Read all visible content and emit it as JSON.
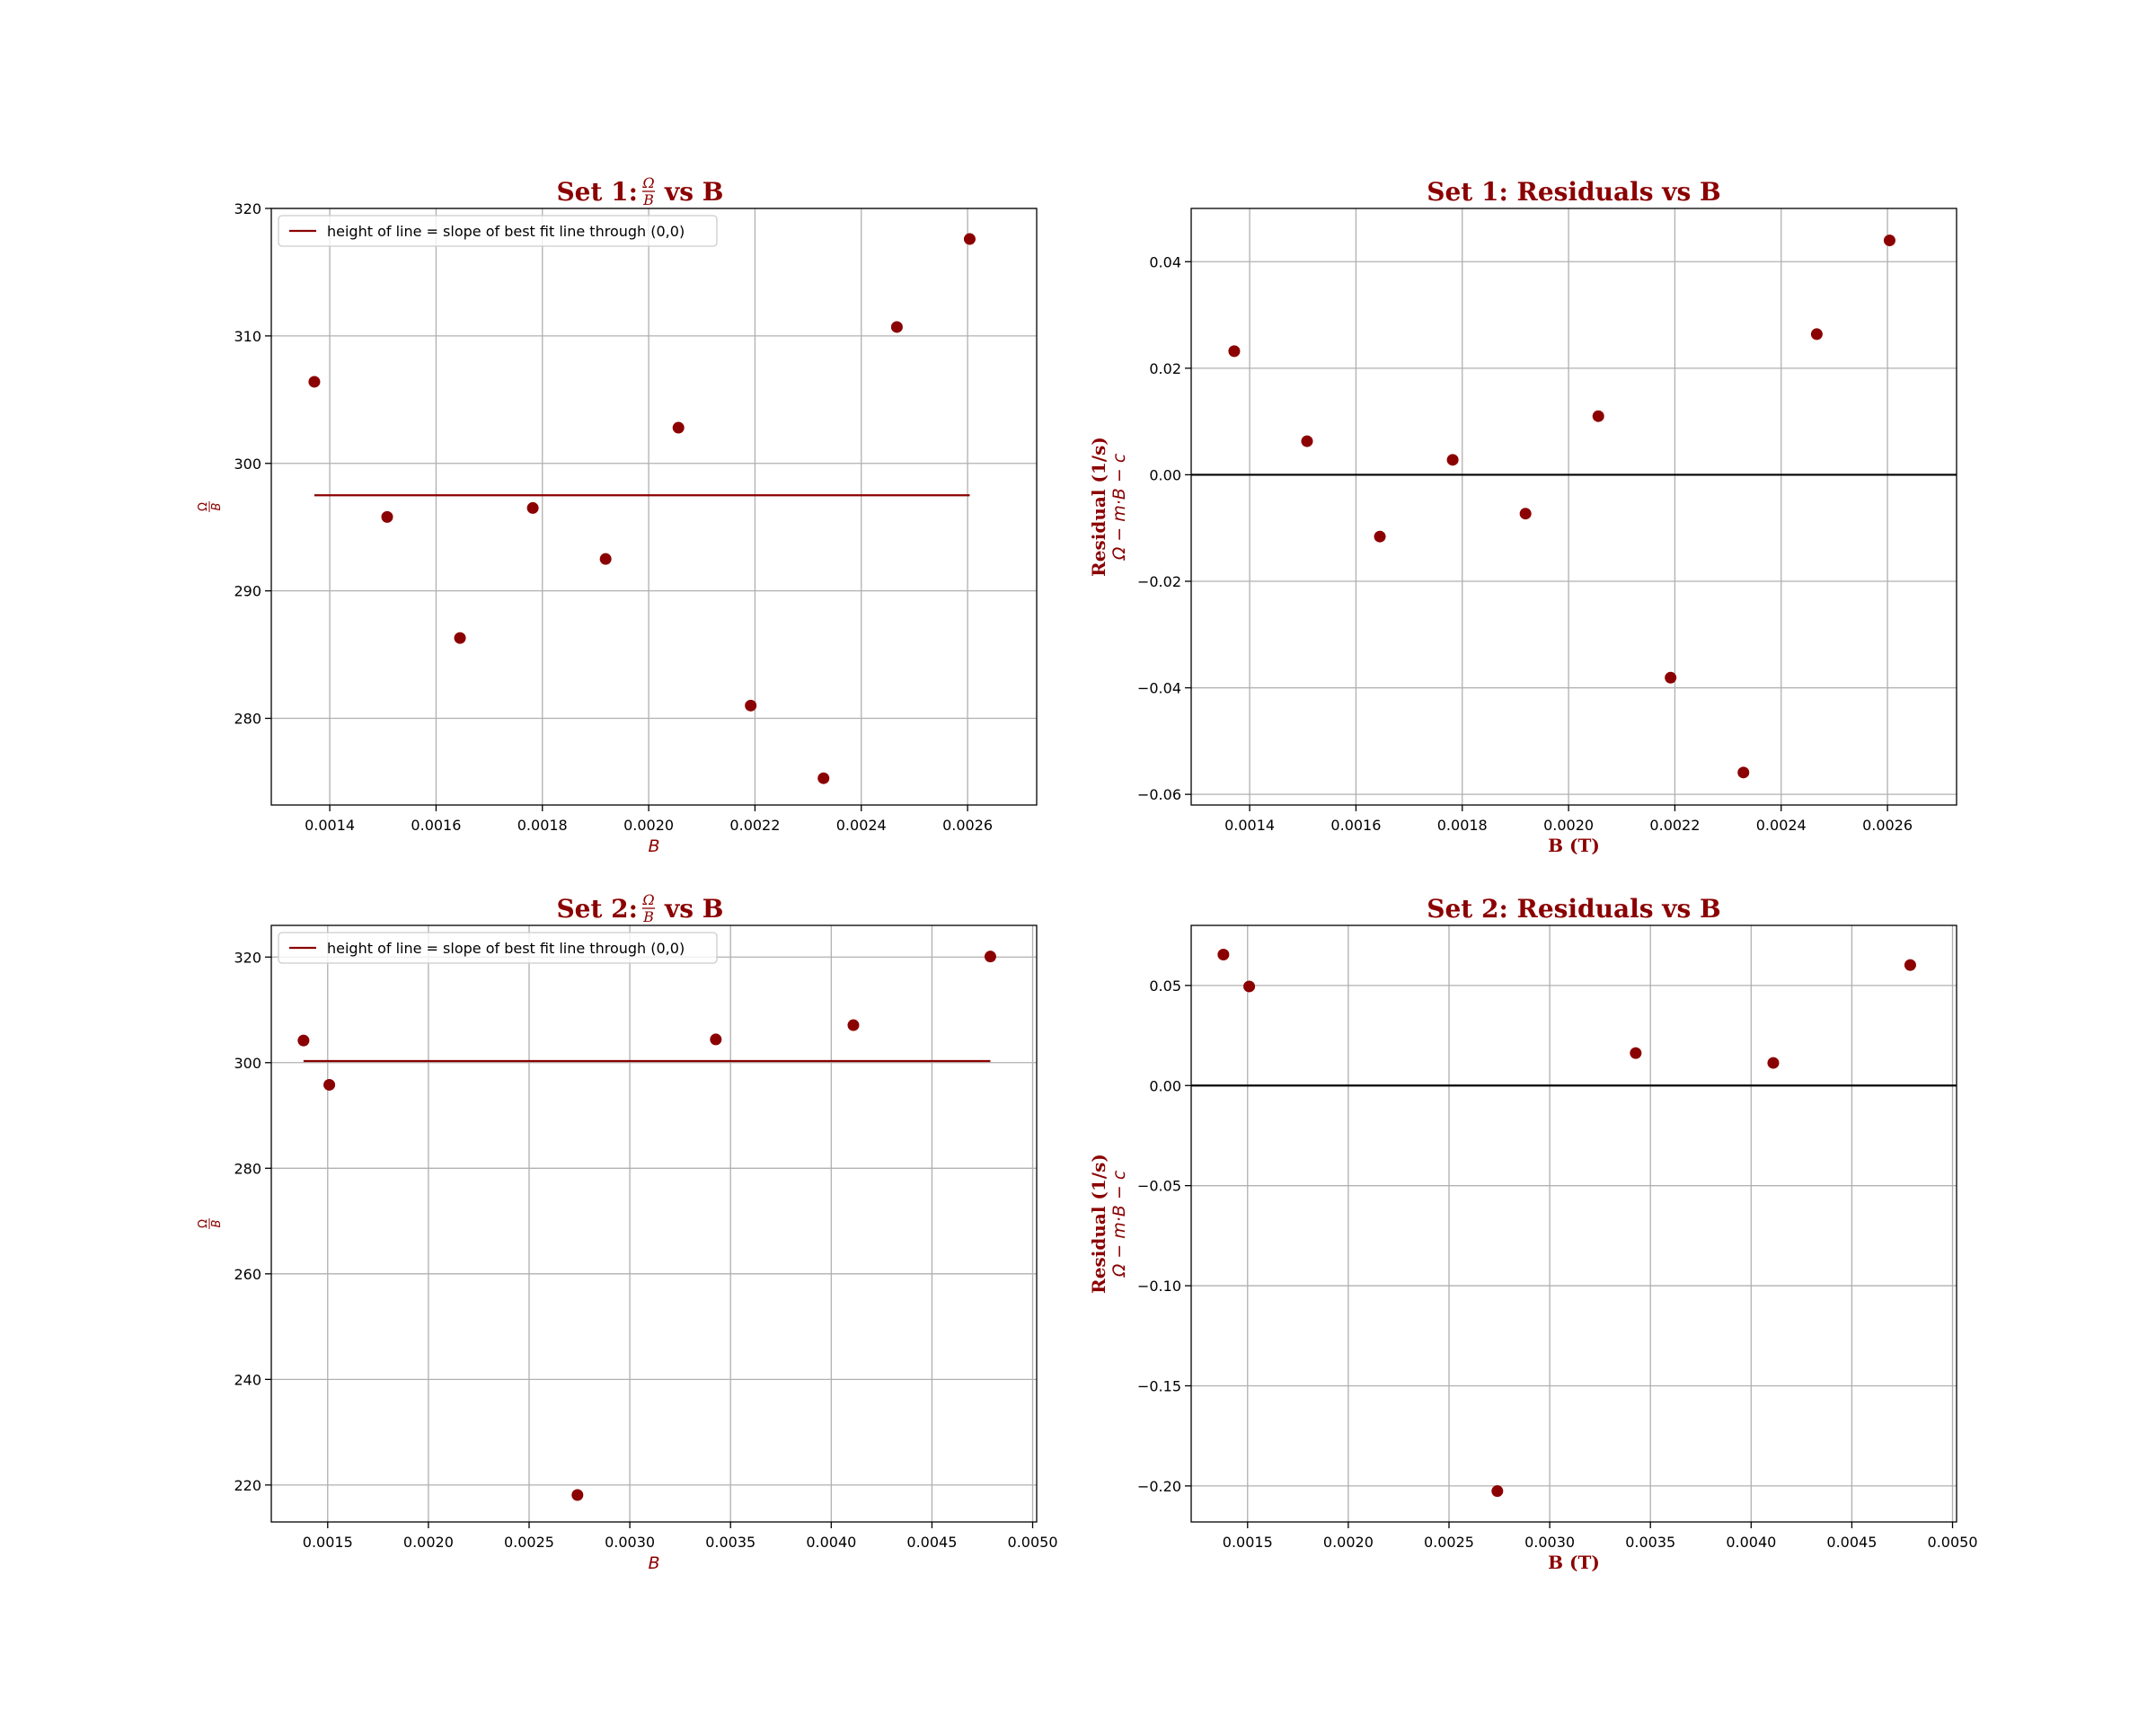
{
  "chart_data": [
    {
      "id": "p1",
      "type": "scatter",
      "title_prefix": "Set 1:",
      "title_frac_num": "Ω",
      "title_frac_den": "B",
      "title_suffix": "vs B",
      "xlabel": "B",
      "ylabel": "Ω/B",
      "xlim": [
        0.00129,
        0.00273
      ],
      "ylim": [
        273.2,
        320
      ],
      "xticks": [
        0.0014,
        0.0016,
        0.0018,
        0.002,
        0.0022,
        0.0024,
        0.0026
      ],
      "xtick_labels": [
        "0.0014",
        "0.0016",
        "0.0018",
        "0.0020",
        "0.0022",
        "0.0024",
        "0.0026"
      ],
      "yticks": [
        280,
        290,
        300,
        310,
        320
      ],
      "ytick_labels": [
        "280",
        "290",
        "300",
        "310",
        "320"
      ],
      "grid": true,
      "legend": "upper left",
      "legend_label": "height of line  =  slope of best fit line through (0,0)",
      "color": "#8b0000",
      "x": [
        0.001371,
        0.001508,
        0.001645,
        0.001782,
        0.001919,
        0.002056,
        0.002192,
        0.002329,
        0.002467,
        0.002604
      ],
      "y": [
        306.4,
        295.8,
        286.3,
        296.5,
        292.5,
        302.8,
        281.0,
        275.3,
        310.7,
        317.6
      ],
      "hline": {
        "y": 297.5,
        "x": [
          0.001371,
          0.002604
        ]
      }
    },
    {
      "id": "p2",
      "type": "scatter",
      "title": "Set 1: Residuals vs B",
      "xlabel": "B (T)",
      "ylabel": "Residual (1/s)",
      "ylabel_sub": "Ω − m·B − c",
      "xlim": [
        0.00129,
        0.00273
      ],
      "ylim": [
        -0.062,
        0.05
      ],
      "xticks": [
        0.0014,
        0.0016,
        0.0018,
        0.002,
        0.0022,
        0.0024,
        0.0026
      ],
      "xtick_labels": [
        "0.0014",
        "0.0016",
        "0.0018",
        "0.0020",
        "0.0022",
        "0.0024",
        "0.0026"
      ],
      "yticks": [
        -0.06,
        -0.04,
        -0.02,
        0.0,
        0.02,
        0.04
      ],
      "ytick_labels": [
        "−0.06",
        "−0.04",
        "−0.02",
        "0.00",
        "0.02",
        "0.04"
      ],
      "grid": true,
      "color": "#8b0000",
      "x": [
        0.001371,
        0.001508,
        0.001645,
        0.001782,
        0.001919,
        0.002056,
        0.002192,
        0.002329,
        0.002467,
        0.002604
      ],
      "y": [
        0.0232,
        0.0063,
        -0.0116,
        0.0028,
        -0.0073,
        0.011,
        -0.0381,
        -0.0559,
        0.0264,
        0.044
      ],
      "zero_line": 0
    },
    {
      "id": "p3",
      "type": "scatter",
      "title_prefix": "Set 2:",
      "title_frac_num": "Ω",
      "title_frac_den": "B",
      "title_suffix": "vs B",
      "xlabel": "B",
      "ylabel": "Ω/B",
      "xlim": [
        0.00122,
        0.00502
      ],
      "ylim": [
        213,
        326
      ],
      "xticks": [
        0.0015,
        0.002,
        0.0025,
        0.003,
        0.0035,
        0.004,
        0.0045,
        0.005
      ],
      "xtick_labels": [
        "0.0015",
        "0.0020",
        "0.0025",
        "0.0030",
        "0.0035",
        "0.0040",
        "0.0045",
        "0.0050"
      ],
      "yticks": [
        220,
        240,
        260,
        280,
        300,
        320
      ],
      "ytick_labels": [
        "220",
        "240",
        "260",
        "280",
        "300",
        "320"
      ],
      "grid": true,
      "legend": "upper left",
      "legend_label": "height of line  =  slope of best fit line through (0,0)",
      "color": "#8b0000",
      "x": [
        0.00138,
        0.001508,
        0.00274,
        0.003427,
        0.00411,
        0.00479
      ],
      "y": [
        304.2,
        295.8,
        218.1,
        304.4,
        307.1,
        320.1
      ],
      "hline": {
        "y": 300.3,
        "x": [
          0.00138,
          0.00479
        ]
      }
    },
    {
      "id": "p4",
      "type": "scatter",
      "title": "Set 2: Residuals vs B",
      "xlabel": "B (T)",
      "ylabel": "Residual (1/s)",
      "ylabel_sub": "Ω − m·B − c",
      "xlim": [
        0.00122,
        0.00502
      ],
      "ylim": [
        -0.218,
        0.08
      ],
      "xticks": [
        0.0015,
        0.002,
        0.0025,
        0.003,
        0.0035,
        0.004,
        0.0045,
        0.005
      ],
      "xtick_labels": [
        "0.0015",
        "0.0020",
        "0.0025",
        "0.0030",
        "0.0035",
        "0.0040",
        "0.0045",
        "0.0050"
      ],
      "yticks": [
        -0.2,
        -0.15,
        -0.1,
        -0.05,
        0.0,
        0.05
      ],
      "ytick_labels": [
        "−0.20",
        "−0.15",
        "−0.10",
        "−0.05",
        "0.00",
        "0.05"
      ],
      "grid": true,
      "color": "#8b0000",
      "x": [
        0.00138,
        0.001508,
        0.00274,
        0.003427,
        0.00411,
        0.00479
      ],
      "y": [
        0.0654,
        0.0495,
        -0.2026,
        0.0162,
        0.0113,
        0.0602
      ],
      "zero_line": 0
    }
  ]
}
